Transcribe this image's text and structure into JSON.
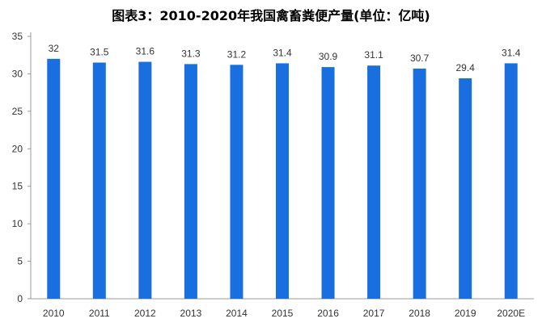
{
  "chart_data": {
    "type": "bar",
    "title": "图表3：2010-2020年我国禽畜粪便产量(单位：亿吨)",
    "categories": [
      "2010",
      "2011",
      "2012",
      "2013",
      "2014",
      "2015",
      "2016",
      "2017",
      "2018",
      "2019",
      "2020E"
    ],
    "values": [
      32,
      31.5,
      31.6,
      31.3,
      31.2,
      31.4,
      30.9,
      31.1,
      30.7,
      29.4,
      31.4
    ],
    "data_labels": [
      "32",
      "31.5",
      "31.6",
      "31.3",
      "31.2",
      "31.4",
      "30.9",
      "31.1",
      "30.7",
      "29.4",
      "31.4"
    ],
    "y_ticks": [
      "0",
      "5",
      "10",
      "15",
      "20",
      "25",
      "30",
      "35"
    ],
    "ylim": [
      0,
      35
    ],
    "xlabel": "",
    "ylabel": "",
    "grid": false,
    "legend": "none",
    "bar_color": "#1a6fe0"
  }
}
